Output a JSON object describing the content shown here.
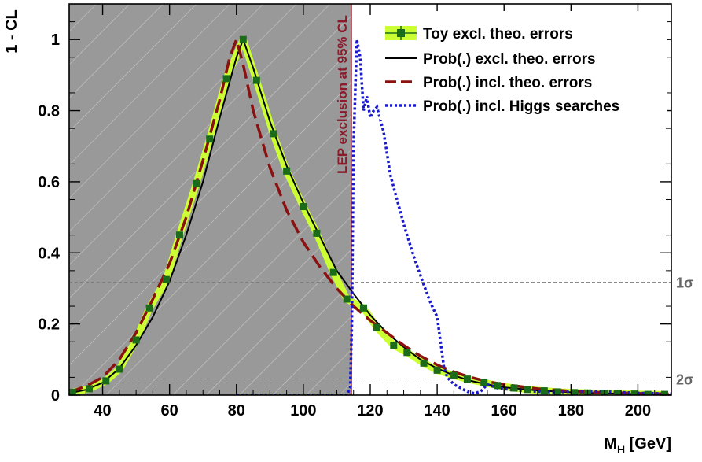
{
  "chart_data": {
    "type": "line",
    "xlabel": "M",
    "xlabel_sub": "H",
    "xlabel_unit": " [GeV]",
    "ylabel": "1 - CL",
    "xlim": [
      30,
      210
    ],
    "ylim": [
      0,
      1.1
    ],
    "x_ticks": [
      40,
      60,
      80,
      100,
      120,
      140,
      160,
      180,
      200
    ],
    "y_ticks": [
      0,
      0.2,
      0.4,
      0.6,
      0.8,
      1
    ],
    "y_tick_labels": [
      "0",
      "0.2",
      "0.4",
      "0.6",
      "0.8",
      "1"
    ],
    "sigma_lines": [
      {
        "label": "1σ",
        "y": 0.3173
      },
      {
        "label": "2σ",
        "y": 0.0455
      }
    ],
    "excluded_region": {
      "x": [
        30,
        114.4
      ],
      "label": "LEP exclusion at 95% CL",
      "line_color": "#e8455a"
    },
    "legend_position": "top-right",
    "series": [
      {
        "name": "Toy excl. theo. errors",
        "style": "markers-with-band",
        "color": "#1a6b1a",
        "band_color": "#ccff33",
        "x": [
          31,
          36,
          41,
          45,
          50,
          54,
          59,
          63,
          68,
          72,
          77,
          82,
          86,
          91,
          95,
          100,
          104,
          109,
          113,
          118,
          122,
          127,
          131,
          136,
          140,
          145,
          149,
          154,
          158,
          163,
          167,
          172,
          176,
          181,
          185,
          190,
          194,
          199,
          203,
          208
        ],
        "y": [
          0.008,
          0.018,
          0.04,
          0.073,
          0.155,
          0.245,
          0.325,
          0.45,
          0.595,
          0.72,
          0.89,
          1.0,
          0.885,
          0.735,
          0.63,
          0.53,
          0.455,
          0.345,
          0.27,
          0.245,
          0.19,
          0.14,
          0.12,
          0.09,
          0.07,
          0.055,
          0.045,
          0.035,
          0.027,
          0.02,
          0.016,
          0.012,
          0.009,
          0.007,
          0.006,
          0.005,
          0.004,
          0.003,
          0.002,
          0.002
        ]
      },
      {
        "name": "Prob(.) excl. theo. errors",
        "style": "solid",
        "color": "#000000",
        "x": [
          30,
          35,
          40,
          45,
          50,
          55,
          60,
          65,
          70,
          75,
          80,
          82,
          85,
          90,
          95,
          100,
          105,
          110,
          115,
          120,
          125,
          130,
          135,
          140,
          145,
          150,
          155,
          160,
          170,
          180,
          190,
          200,
          210
        ],
        "y": [
          0.005,
          0.015,
          0.035,
          0.075,
          0.14,
          0.22,
          0.32,
          0.45,
          0.6,
          0.78,
          0.95,
          1.0,
          0.92,
          0.77,
          0.645,
          0.54,
          0.445,
          0.35,
          0.285,
          0.225,
          0.175,
          0.135,
          0.1,
          0.075,
          0.055,
          0.04,
          0.03,
          0.022,
          0.013,
          0.008,
          0.005,
          0.003,
          0.002
        ]
      },
      {
        "name": "Prob(.) incl. theo. errors",
        "style": "long-dash",
        "color": "#8b1010",
        "x": [
          30,
          35,
          40,
          45,
          50,
          55,
          60,
          65,
          70,
          75,
          78,
          80,
          82,
          85,
          90,
          95,
          100,
          105,
          110,
          115,
          120,
          125,
          130,
          135,
          140,
          145,
          150,
          155,
          160,
          170,
          180,
          190,
          200,
          210
        ],
        "y": [
          0.008,
          0.025,
          0.05,
          0.1,
          0.175,
          0.27,
          0.37,
          0.5,
          0.66,
          0.83,
          0.95,
          1.0,
          0.93,
          0.8,
          0.64,
          0.52,
          0.43,
          0.36,
          0.3,
          0.25,
          0.21,
          0.175,
          0.14,
          0.11,
          0.085,
          0.065,
          0.05,
          0.038,
          0.03,
          0.018,
          0.011,
          0.007,
          0.005,
          0.003
        ]
      },
      {
        "name": "Prob(.) incl. Higgs searches",
        "style": "dotted",
        "color": "#1a1acc",
        "x": [
          80,
          90,
          100,
          110,
          113,
          114,
          114.5,
          115,
          116,
          117,
          118,
          119,
          120,
          121,
          122,
          124,
          126,
          128,
          130,
          133,
          136,
          138,
          140,
          141,
          142,
          143,
          145,
          147,
          149,
          151,
          153,
          155,
          158,
          162,
          166,
          170,
          175,
          180,
          190,
          200,
          210
        ],
        "y": [
          0,
          0,
          0,
          0,
          0,
          0.02,
          0.2,
          0.7,
          1.0,
          0.95,
          0.8,
          0.84,
          0.78,
          0.8,
          0.81,
          0.74,
          0.62,
          0.55,
          0.48,
          0.39,
          0.31,
          0.26,
          0.22,
          0.15,
          0.08,
          0.05,
          0.03,
          0.02,
          0.01,
          0.005,
          0.01,
          0.03,
          0.02,
          0.015,
          0.012,
          0.01,
          0.008,
          0.01,
          0.01,
          0.006,
          0.004
        ]
      }
    ]
  }
}
